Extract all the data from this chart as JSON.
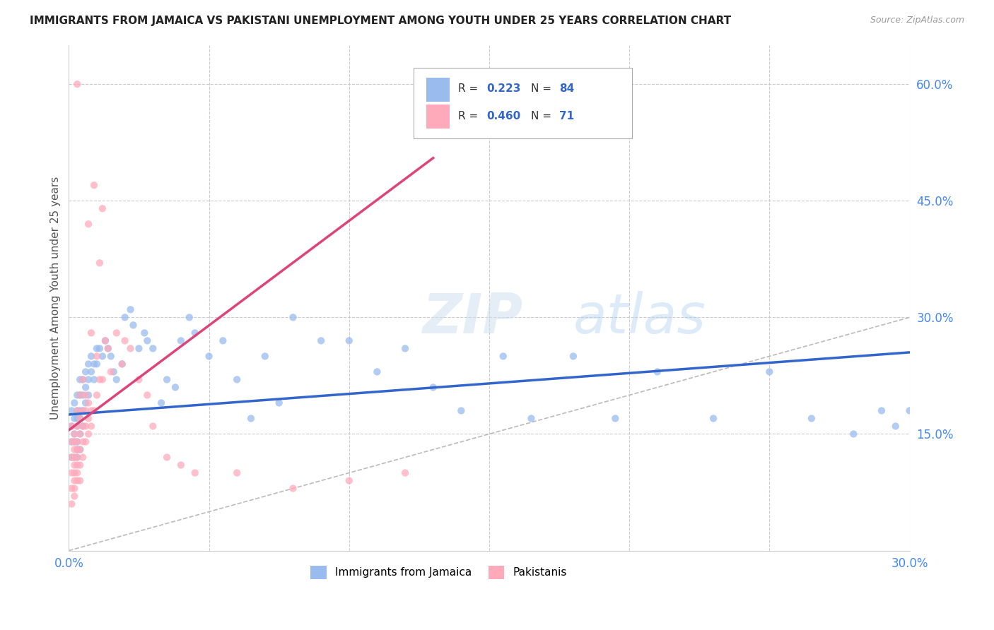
{
  "title": "IMMIGRANTS FROM JAMAICA VS PAKISTANI UNEMPLOYMENT AMONG YOUTH UNDER 25 YEARS CORRELATION CHART",
  "source": "Source: ZipAtlas.com",
  "ylabel": "Unemployment Among Youth under 25 years",
  "x_min": 0.0,
  "x_max": 0.3,
  "y_min": 0.0,
  "y_max": 0.65,
  "x_ticklabels_show": [
    "0.0%",
    "30.0%"
  ],
  "y_ticks_right": [
    0.15,
    0.3,
    0.45,
    0.6
  ],
  "y_ticklabels_right": [
    "15.0%",
    "30.0%",
    "45.0%",
    "60.0%"
  ],
  "legend_label_jamaica": "Immigrants from Jamaica",
  "legend_label_pakistani": "Pakistanis",
  "line_color_jamaica": "#3366cc",
  "line_color_pakistani": "#dd4477",
  "diagonal_line_color": "#bbbbbb",
  "background_color": "#ffffff",
  "grid_color": "#cccccc",
  "watermark": "ZIPatlas",
  "scatter_color_jamaica": "#99bbee",
  "scatter_color_pakistani": "#ffaabb",
  "scatter_alpha": 0.75,
  "scatter_size": 55,
  "jamaica_trend_x": [
    0.0,
    0.3
  ],
  "jamaica_trend_y": [
    0.175,
    0.255
  ],
  "pakistani_trend_x": [
    0.0,
    0.13
  ],
  "pakistani_trend_y": [
    0.155,
    0.505
  ],
  "jamaica_x": [
    0.001,
    0.001,
    0.001,
    0.001,
    0.002,
    0.002,
    0.002,
    0.002,
    0.002,
    0.003,
    0.003,
    0.003,
    0.003,
    0.003,
    0.003,
    0.003,
    0.004,
    0.004,
    0.004,
    0.004,
    0.004,
    0.004,
    0.005,
    0.005,
    0.005,
    0.005,
    0.006,
    0.006,
    0.006,
    0.007,
    0.007,
    0.007,
    0.008,
    0.008,
    0.009,
    0.009,
    0.01,
    0.01,
    0.011,
    0.012,
    0.013,
    0.014,
    0.015,
    0.016,
    0.017,
    0.019,
    0.02,
    0.022,
    0.023,
    0.025,
    0.027,
    0.028,
    0.03,
    0.033,
    0.035,
    0.038,
    0.04,
    0.043,
    0.045,
    0.05,
    0.055,
    0.06,
    0.065,
    0.07,
    0.075,
    0.08,
    0.09,
    0.1,
    0.11,
    0.12,
    0.13,
    0.14,
    0.155,
    0.165,
    0.18,
    0.195,
    0.21,
    0.23,
    0.25,
    0.265,
    0.28,
    0.29,
    0.295,
    0.3
  ],
  "jamaica_y": [
    0.18,
    0.16,
    0.14,
    0.12,
    0.19,
    0.17,
    0.15,
    0.14,
    0.12,
    0.2,
    0.18,
    0.17,
    0.16,
    0.14,
    0.13,
    0.12,
    0.22,
    0.2,
    0.18,
    0.17,
    0.15,
    0.13,
    0.22,
    0.2,
    0.18,
    0.16,
    0.23,
    0.21,
    0.19,
    0.24,
    0.22,
    0.2,
    0.25,
    0.23,
    0.24,
    0.22,
    0.26,
    0.24,
    0.26,
    0.25,
    0.27,
    0.26,
    0.25,
    0.23,
    0.22,
    0.24,
    0.3,
    0.31,
    0.29,
    0.26,
    0.28,
    0.27,
    0.26,
    0.19,
    0.22,
    0.21,
    0.27,
    0.3,
    0.28,
    0.25,
    0.27,
    0.22,
    0.17,
    0.25,
    0.19,
    0.3,
    0.27,
    0.27,
    0.23,
    0.26,
    0.21,
    0.18,
    0.25,
    0.17,
    0.25,
    0.17,
    0.23,
    0.17,
    0.23,
    0.17,
    0.15,
    0.18,
    0.16,
    0.18
  ],
  "pakistani_x": [
    0.001,
    0.001,
    0.001,
    0.001,
    0.001,
    0.001,
    0.002,
    0.002,
    0.002,
    0.002,
    0.002,
    0.002,
    0.002,
    0.002,
    0.002,
    0.003,
    0.003,
    0.003,
    0.003,
    0.003,
    0.003,
    0.003,
    0.003,
    0.003,
    0.004,
    0.004,
    0.004,
    0.004,
    0.004,
    0.004,
    0.005,
    0.005,
    0.005,
    0.005,
    0.005,
    0.006,
    0.006,
    0.006,
    0.006,
    0.007,
    0.007,
    0.007,
    0.007,
    0.008,
    0.008,
    0.008,
    0.009,
    0.009,
    0.01,
    0.01,
    0.011,
    0.011,
    0.012,
    0.012,
    0.013,
    0.014,
    0.015,
    0.017,
    0.019,
    0.02,
    0.022,
    0.025,
    0.028,
    0.03,
    0.035,
    0.04,
    0.045,
    0.06,
    0.08,
    0.1,
    0.12
  ],
  "pakistani_y": [
    0.1,
    0.12,
    0.08,
    0.14,
    0.16,
    0.06,
    0.09,
    0.11,
    0.13,
    0.15,
    0.08,
    0.1,
    0.12,
    0.14,
    0.07,
    0.1,
    0.12,
    0.14,
    0.16,
    0.18,
    0.09,
    0.11,
    0.13,
    0.6,
    0.11,
    0.13,
    0.15,
    0.17,
    0.09,
    0.2,
    0.12,
    0.14,
    0.16,
    0.18,
    0.22,
    0.14,
    0.16,
    0.18,
    0.2,
    0.15,
    0.17,
    0.19,
    0.42,
    0.16,
    0.18,
    0.28,
    0.18,
    0.47,
    0.2,
    0.25,
    0.22,
    0.37,
    0.22,
    0.44,
    0.27,
    0.26,
    0.23,
    0.28,
    0.24,
    0.27,
    0.26,
    0.22,
    0.2,
    0.16,
    0.12,
    0.11,
    0.1,
    0.1,
    0.08,
    0.09,
    0.1
  ]
}
